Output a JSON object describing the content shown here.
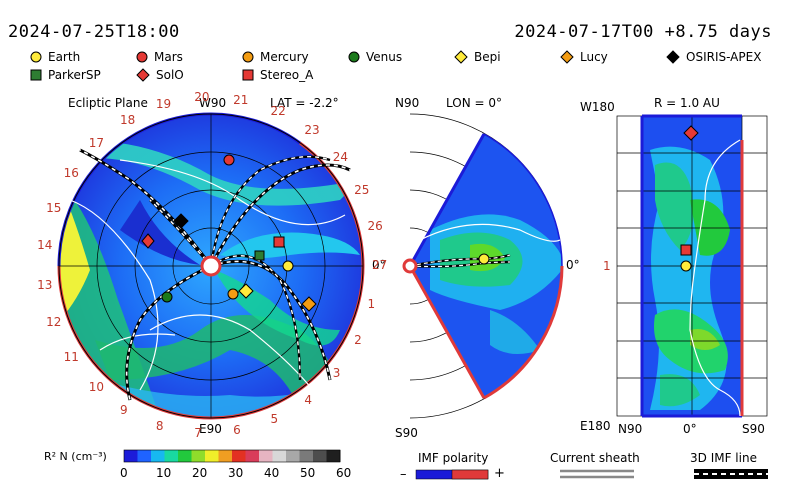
{
  "header": {
    "left_time": "2024-07-25T18:00",
    "right_time": "2024-07-17T00 +8.75 days"
  },
  "legend": [
    {
      "label": "Earth",
      "shape": "circle",
      "color": "#ffeb3b"
    },
    {
      "label": "Mars",
      "shape": "circle",
      "color": "#e53935"
    },
    {
      "label": "Mercury",
      "shape": "circle",
      "color": "#f39c12"
    },
    {
      "label": "Venus",
      "shape": "circle",
      "color": "#1b7a1b"
    },
    {
      "label": "Bepi",
      "shape": "diamond",
      "color": "#ffeb3b"
    },
    {
      "label": "Lucy",
      "shape": "diamond",
      "color": "#f39c12"
    },
    {
      "label": "OSIRIS-APEX",
      "shape": "diamond",
      "color": "#000000"
    },
    {
      "label": "ParkerSP",
      "shape": "square",
      "color": "#2e7d32"
    },
    {
      "label": "SolO",
      "shape": "diamond",
      "color": "#e53935"
    },
    {
      "label": "Stereo_A",
      "shape": "square",
      "color": "#e53935"
    }
  ],
  "ecliptic_panel": {
    "title": "Ecliptic Plane",
    "lat": "LAT = -2.2°",
    "top_label": "W90",
    "bottom_label": "E90",
    "right_label": "0°",
    "sectors": [
      "1",
      "2",
      "3",
      "4",
      "5",
      "6",
      "7",
      "8",
      "9",
      "10",
      "11",
      "12",
      "13",
      "14",
      "15",
      "16",
      "17",
      "18",
      "19",
      "20",
      "21",
      "22",
      "23",
      "24",
      "25",
      "26",
      "27"
    ]
  },
  "meridional_panel": {
    "title": "LON = 0°",
    "top_label": "N90",
    "bottom_label": "S90",
    "right_label": "0°"
  },
  "cylindrical_panel": {
    "title": "R = 1.0 AU",
    "top_label": "W180",
    "bottom_label": "E180",
    "left_label": "1",
    "x_labels": [
      "N90",
      "0°",
      "S90"
    ]
  },
  "colorbar": {
    "label": "R² N (cm⁻³)",
    "ticks": [
      "0",
      "10",
      "20",
      "30",
      "40",
      "50",
      "60"
    ],
    "colors": [
      "#1c1cd9",
      "#1f63ff",
      "#17b8f0",
      "#19d9a0",
      "#22c93d",
      "#8fdc2b",
      "#f0ee2a",
      "#f09e22",
      "#e33122",
      "#d93c5a",
      "#e6b4c1",
      "#d8d8d8",
      "#a8a8a8",
      "#7a7a7a",
      "#4d4d4d",
      "#1f1f1f"
    ]
  },
  "bottom_legend": {
    "imf_polarity": "IMF polarity",
    "minus": "–",
    "plus": "+",
    "current_sheath": "Current sheath",
    "imf_3d": "3D IMF line"
  }
}
